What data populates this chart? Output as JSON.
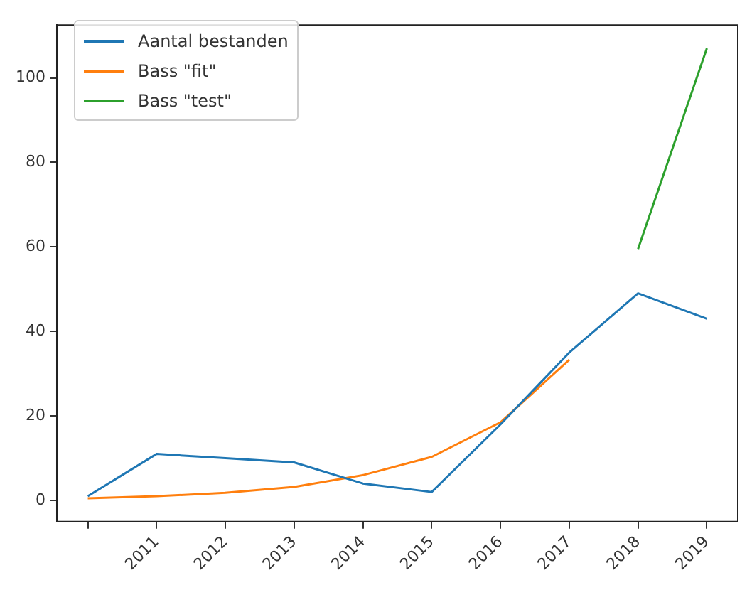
{
  "chart_data": {
    "type": "line",
    "legend": "top left",
    "grid": false,
    "xlim": [
      2009.55,
      2019.45
    ],
    "xticks": [
      {
        "value": 2010,
        "label": null
      },
      2011,
      2012,
      2013,
      2014,
      2015,
      2016,
      2017,
      2018,
      2019
    ],
    "ylim": [
      -5,
      112.5
    ],
    "yticks": [
      0,
      20,
      40,
      60,
      80,
      100
    ],
    "series": [
      {
        "name": "Aantal bestanden",
        "color": "#1f77b4",
        "x": [
          2010,
          2011,
          2012,
          2013,
          2014,
          2015,
          2016,
          2017,
          2018,
          2019
        ],
        "values": [
          1,
          11,
          10,
          9,
          4,
          2,
          18,
          35,
          49,
          43
        ]
      },
      {
        "name": "Bass \"fit\"",
        "color": "#ff7f0e",
        "x": [
          2010,
          2011,
          2012,
          2013,
          2014,
          2015,
          2016,
          2017
        ],
        "values": [
          0.5,
          1,
          1.8,
          3.2,
          6,
          10.3,
          18.5,
          33.3
        ]
      },
      {
        "name": "Bass \"test\"",
        "color": "#2ca02c",
        "x": [
          2018,
          2019
        ],
        "values": [
          59.5,
          107
        ]
      }
    ]
  }
}
